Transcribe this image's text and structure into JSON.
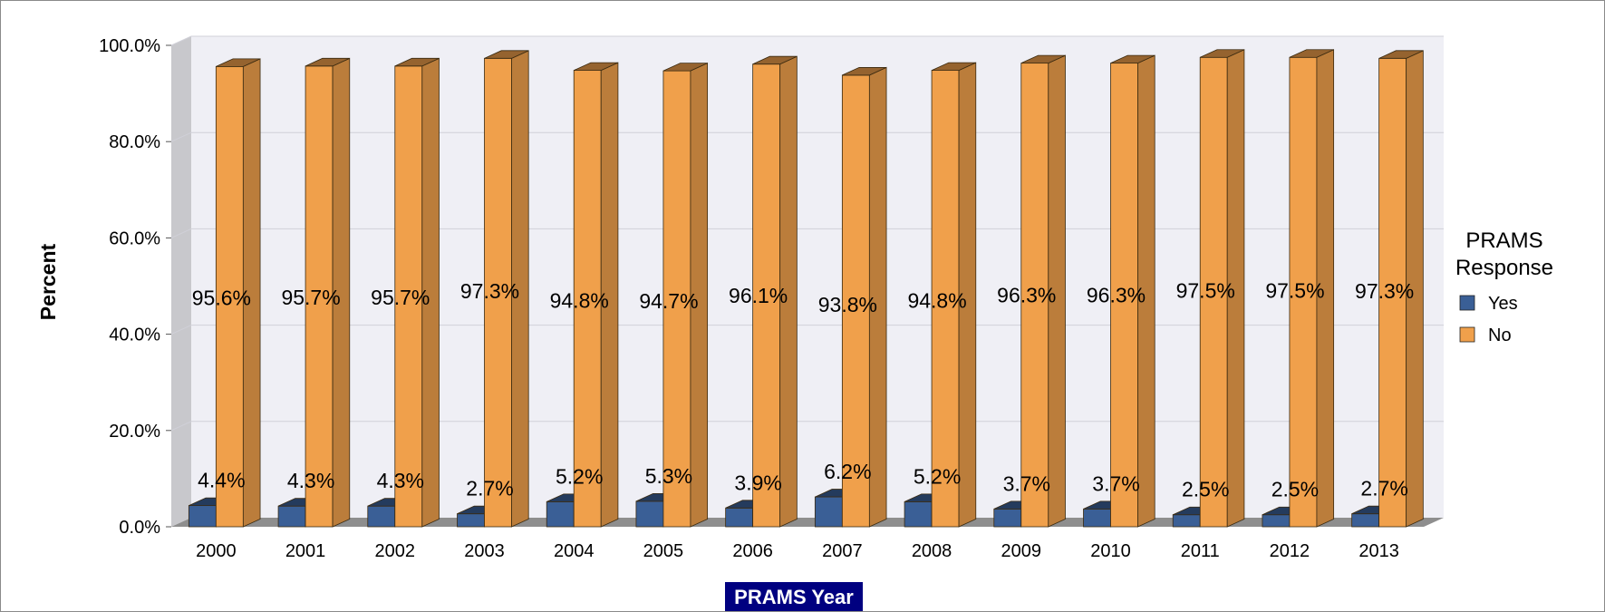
{
  "chart_data": {
    "type": "bar",
    "title": "",
    "xlabel": "PRAMS Year",
    "ylabel": "Percent",
    "ylim": [
      0,
      100
    ],
    "yticks": [
      "0.0%",
      "20.0%",
      "40.0%",
      "60.0%",
      "80.0%",
      "100.0%"
    ],
    "ytick_values": [
      0,
      20,
      40,
      60,
      80,
      100
    ],
    "categories": [
      "2000",
      "2001",
      "2002",
      "2003",
      "2004",
      "2005",
      "2006",
      "2007",
      "2008",
      "2009",
      "2010",
      "2011",
      "2012",
      "2013"
    ],
    "legend_title": "PRAMS Response",
    "legend_position": "right",
    "grid": true,
    "style": "3d",
    "series": [
      {
        "name": "Yes",
        "color": "#3A5F96",
        "values": [
          4.4,
          4.3,
          4.3,
          2.7,
          5.2,
          5.3,
          3.9,
          6.2,
          5.2,
          3.7,
          3.7,
          2.5,
          2.5,
          2.7
        ],
        "labels": [
          "4.4%",
          "4.3%",
          "4.3%",
          "2.7%",
          "5.2%",
          "5.3%",
          "3.9%",
          "6.2%",
          "5.2%",
          "3.7%",
          "3.7%",
          "2.5%",
          "2.5%",
          "2.7%"
        ]
      },
      {
        "name": "No",
        "color": "#F0A04B",
        "values": [
          95.6,
          95.7,
          95.7,
          97.3,
          94.8,
          94.7,
          96.1,
          93.8,
          94.8,
          96.3,
          96.3,
          97.5,
          97.5,
          97.3
        ],
        "labels": [
          "95.6%",
          "95.7%",
          "95.7%",
          "97.3%",
          "94.8%",
          "94.7%",
          "96.1%",
          "93.8%",
          "94.8%",
          "96.3%",
          "96.3%",
          "97.5%",
          "97.5%",
          "97.3%"
        ]
      }
    ]
  }
}
